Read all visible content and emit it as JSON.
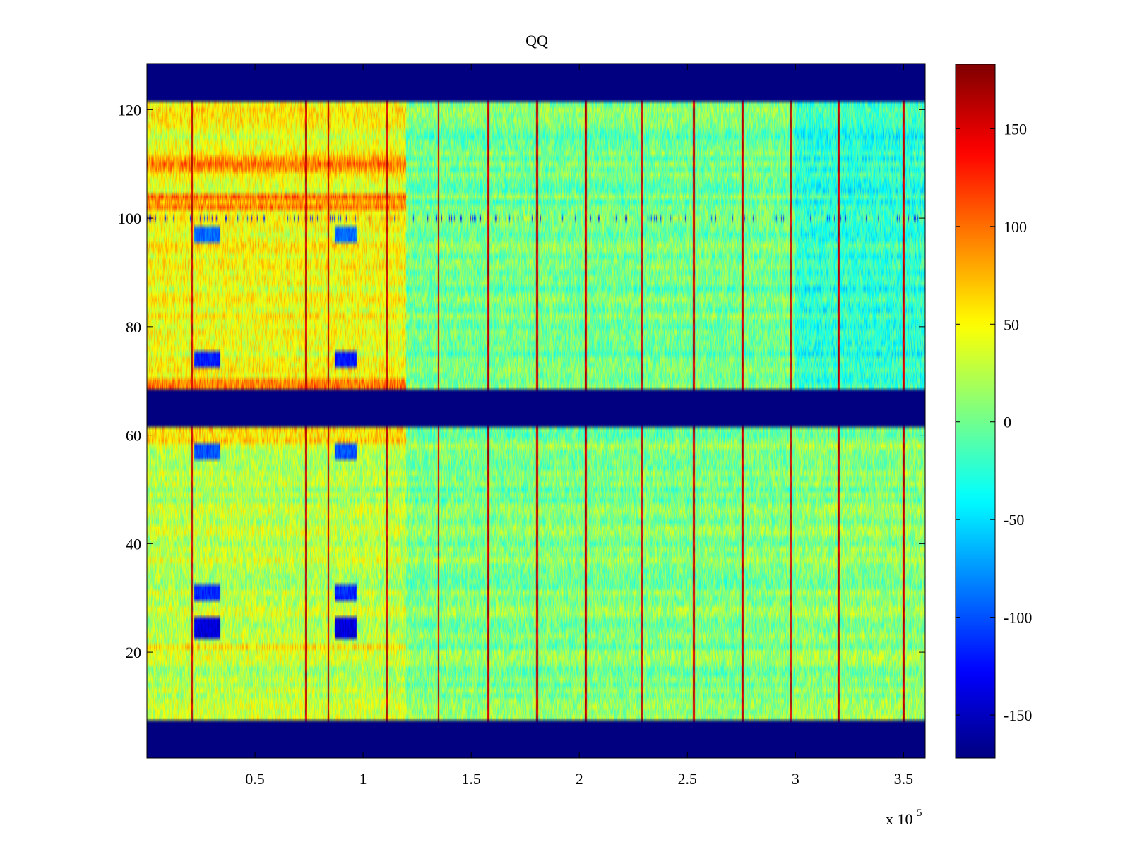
{
  "chart_data": {
    "type": "heatmap",
    "title": "QQ",
    "xlabel": "",
    "ylabel": "",
    "x_multiplier_label": "x 10",
    "x_multiplier_exponent": "5",
    "xlim": [
      0,
      360000
    ],
    "ylim": [
      0.5,
      128.5
    ],
    "xticks": [
      50000,
      100000,
      150000,
      200000,
      250000,
      300000,
      350000
    ],
    "xtick_labels": [
      "0.5",
      "1",
      "1.5",
      "2",
      "2.5",
      "3",
      "3.5"
    ],
    "yticks": [
      20,
      40,
      60,
      80,
      100,
      120
    ],
    "ytick_labels": [
      "20",
      "40",
      "60",
      "80",
      "100",
      "120"
    ],
    "colorbar": {
      "colormap": "jet",
      "clim": [
        -172,
        183
      ],
      "ticks": [
        -150,
        -100,
        -50,
        0,
        50,
        100,
        150
      ],
      "tick_labels": [
        "-150",
        "-100",
        "-50",
        "0",
        "50",
        "100",
        "150"
      ]
    },
    "masked_row_bands": [
      [
        0.5,
        7.5
      ],
      [
        61.5,
        68.5
      ],
      [
        121.5,
        128.5
      ]
    ],
    "masked_value": -172,
    "spike_columns_x": [
      21000,
      73500,
      84000,
      111000,
      135000,
      158000,
      180500,
      203000,
      229000,
      253000,
      275500,
      298000,
      320000,
      350000
    ],
    "spike_value": 180,
    "region_means": [
      {
        "x_range": [
          0,
          120000
        ],
        "rows": [
          8,
          61
        ],
        "mean": 25
      },
      {
        "x_range": [
          120000,
          300000
        ],
        "rows": [
          8,
          61
        ],
        "mean": 5
      },
      {
        "x_range": [
          300000,
          360000
        ],
        "rows": [
          8,
          61
        ],
        "mean": 10
      },
      {
        "x_range": [
          0,
          120000
        ],
        "rows": [
          69,
          121
        ],
        "mean": 45
      },
      {
        "x_range": [
          120000,
          300000
        ],
        "rows": [
          69,
          121
        ],
        "mean": 0
      },
      {
        "x_range": [
          300000,
          360000
        ],
        "rows": [
          69,
          121
        ],
        "mean": -25
      }
    ],
    "hot_rows_early": [
      69,
      70,
      102,
      103,
      104,
      109,
      110,
      111,
      59,
      60,
      61,
      21
    ],
    "cold_blobs": [
      {
        "x_range": [
          22000,
          34000
        ],
        "rows": [
          23,
          26
        ],
        "value": -140
      },
      {
        "x_range": [
          87000,
          97000
        ],
        "rows": [
          23,
          26
        ],
        "value": -140
      },
      {
        "x_range": [
          22000,
          34000
        ],
        "rows": [
          30,
          32
        ],
        "value": -115
      },
      {
        "x_range": [
          87000,
          97000
        ],
        "rows": [
          30,
          32
        ],
        "value": -115
      },
      {
        "x_range": [
          22000,
          34000
        ],
        "rows": [
          56,
          58
        ],
        "value": -100
      },
      {
        "x_range": [
          87000,
          97000
        ],
        "rows": [
          56,
          58
        ],
        "value": -100
      },
      {
        "x_range": [
          22000,
          34000
        ],
        "rows": [
          96,
          98
        ],
        "value": -90
      },
      {
        "x_range": [
          87000,
          97000
        ],
        "rows": [
          96,
          98
        ],
        "value": -90
      },
      {
        "x_range": [
          22000,
          34000
        ],
        "rows": [
          73,
          75
        ],
        "value": -120
      },
      {
        "x_range": [
          87000,
          97000
        ],
        "rows": [
          73,
          75
        ],
        "value": -120
      }
    ],
    "dropout_row": 100,
    "grid": false
  }
}
